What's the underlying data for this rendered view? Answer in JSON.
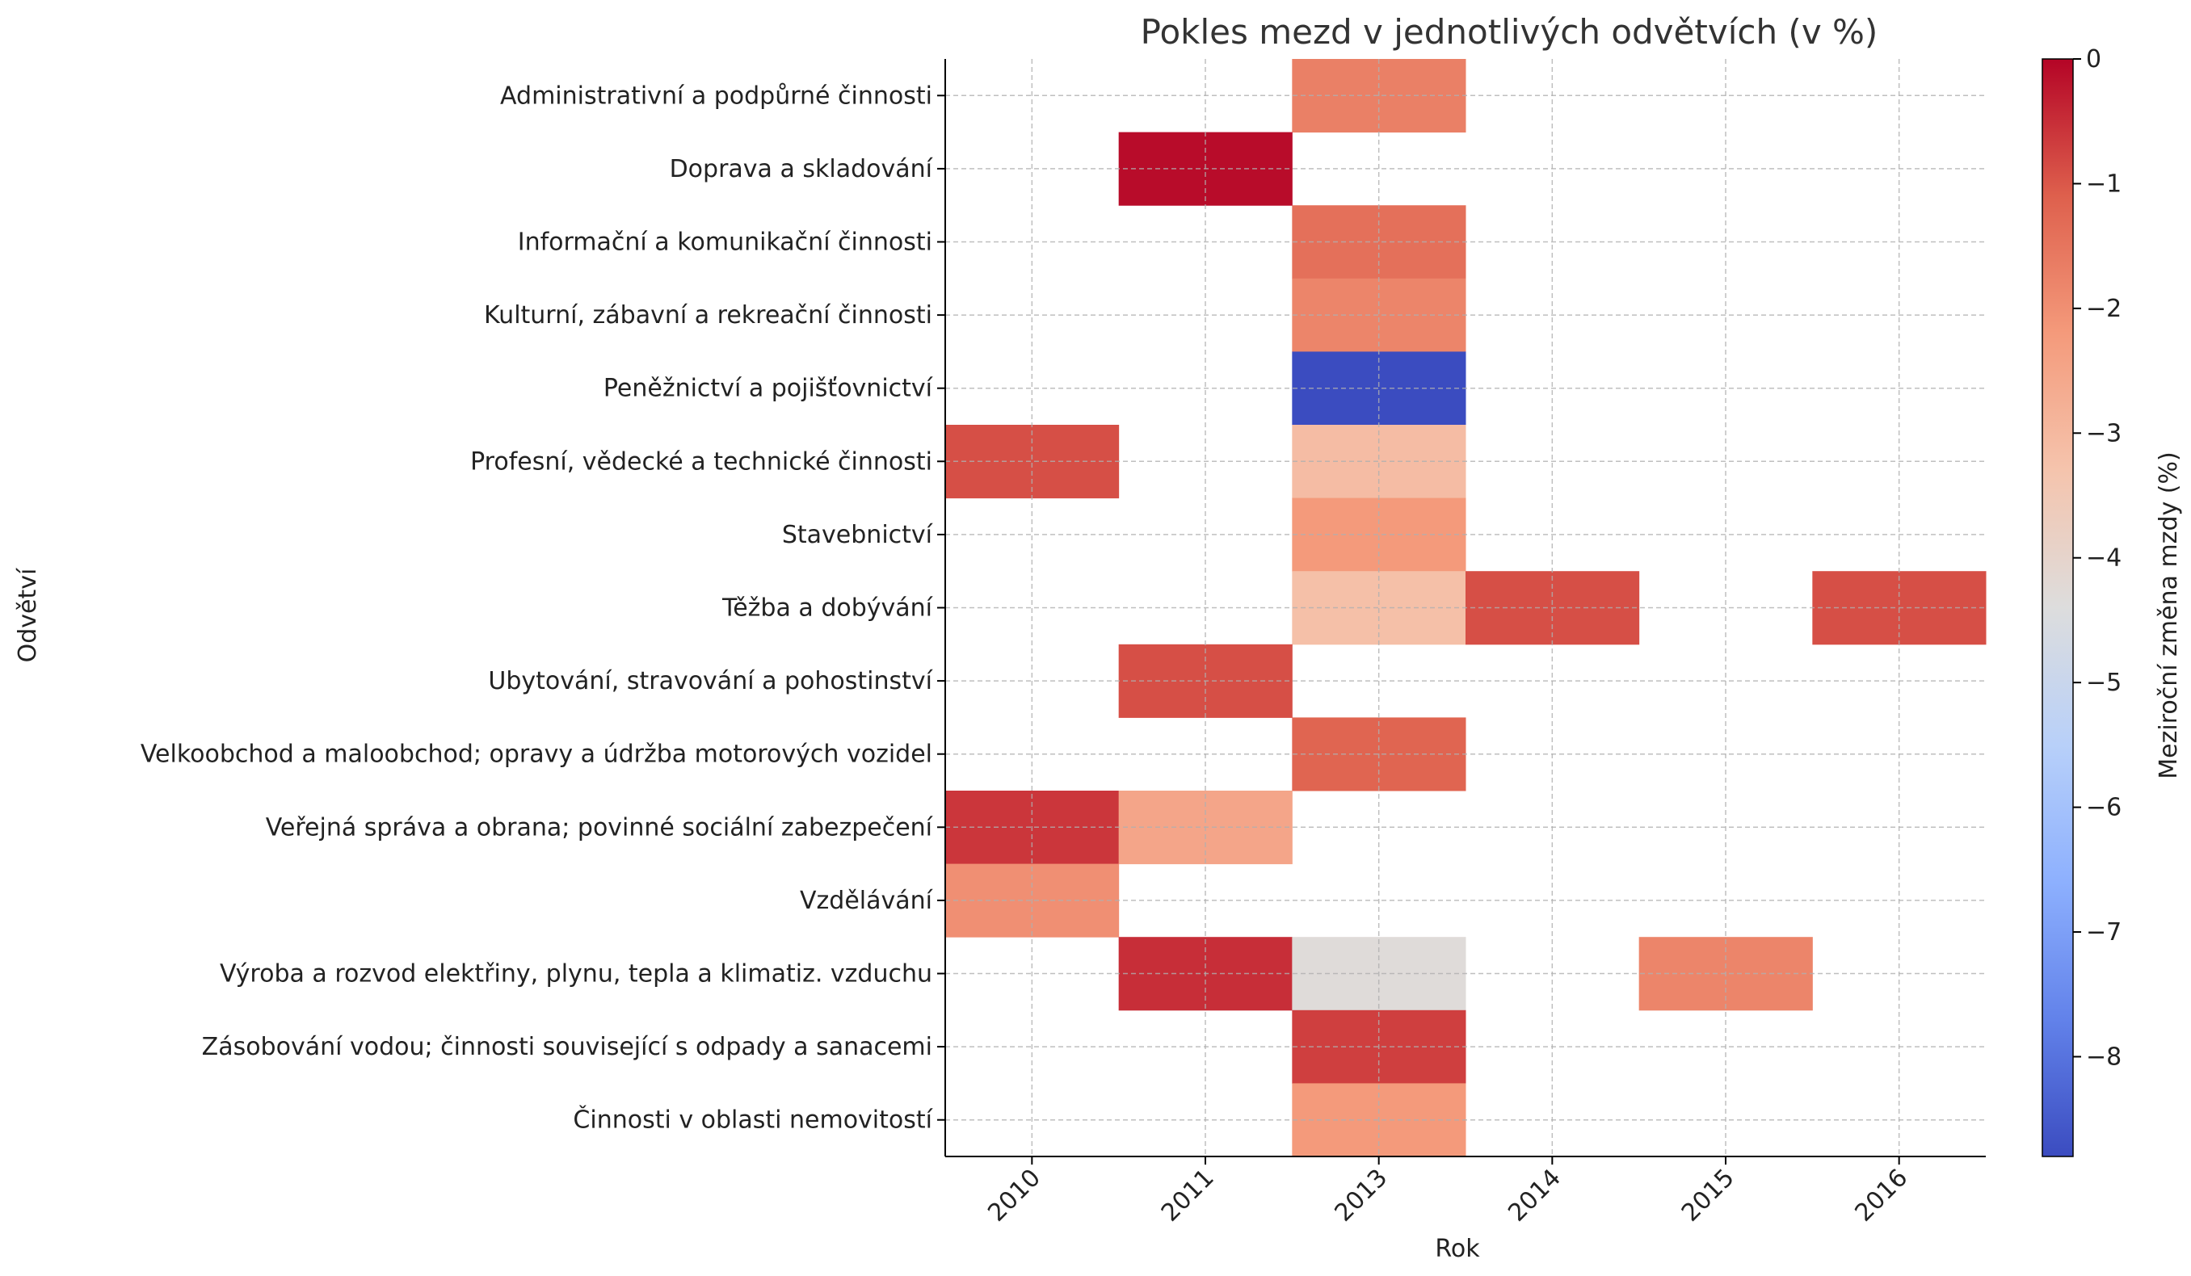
{
  "chart_data": {
    "type": "heatmap",
    "title": "Pokles mezd v jednotlivých odvětvích (v %)",
    "xlabel": "Rok",
    "ylabel": "Odvětví",
    "x": [
      "2010",
      "2011",
      "2013",
      "2014",
      "2015",
      "2016"
    ],
    "y": [
      "Administrativní a podpůrné činnosti",
      "Doprava a skladování",
      "Informační a komunikační činnosti",
      "Kulturní, zábavní a rekreační činnosti",
      "Peněžnictví a pojišťovnictví",
      "Profesní, vědecké a technické činnosti",
      "Stavebnictví",
      "Těžba a dobývání",
      "Ubytování, stravování a pohostinství",
      "Velkoobchod a maloobchod; opravy a údržba motorových vozidel",
      "Veřejná správa a obrana; povinné sociální zabezpečení",
      "Vzdělávání",
      "Výroba a rozvod elektřiny, plynu, tepla a klimatiz. vzduchu",
      "Zásobování vodou; činnosti související s odpady a sanacemi",
      "Činnosti v oblasti nemovitostí"
    ],
    "values": [
      [
        null,
        null,
        -1.7,
        null,
        null,
        null
      ],
      [
        null,
        -0.1,
        null,
        null,
        null,
        null
      ],
      [
        null,
        null,
        -1.4,
        null,
        null,
        null
      ],
      [
        null,
        null,
        -1.8,
        null,
        null,
        null
      ],
      [
        null,
        null,
        -8.8,
        null,
        null,
        null
      ],
      [
        -0.9,
        null,
        -3.1,
        null,
        null,
        null
      ],
      [
        null,
        null,
        -2.2,
        null,
        null,
        null
      ],
      [
        null,
        null,
        -3.2,
        -0.9,
        null,
        -0.9
      ],
      [
        null,
        -0.9,
        null,
        null,
        null,
        null
      ],
      [
        null,
        null,
        -1.2,
        null,
        null,
        null
      ],
      [
        -0.6,
        -2.5,
        null,
        null,
        null,
        null
      ],
      [
        -2.0,
        null,
        null,
        null,
        null,
        null
      ],
      [
        null,
        -0.5,
        -4.3,
        null,
        -1.8,
        null
      ],
      [
        null,
        null,
        -0.7,
        null,
        null,
        null
      ],
      [
        null,
        null,
        -2.2,
        null,
        null,
        null
      ]
    ],
    "colorbar": {
      "label": "Meziroční změna mzdy (%)",
      "min": -8.8,
      "max": 0,
      "ticks": [
        "0",
        "−1",
        "−2",
        "−3",
        "−4",
        "−5",
        "−6",
        "−7",
        "−8"
      ],
      "colormap": "coolwarm"
    },
    "grid": true,
    "colors": {
      "low": "#3b4cc0",
      "mid": "#dddddd",
      "high": "#b40426",
      "grid": "#b0b0b0",
      "axis": "#000000",
      "text": "#222222"
    }
  }
}
